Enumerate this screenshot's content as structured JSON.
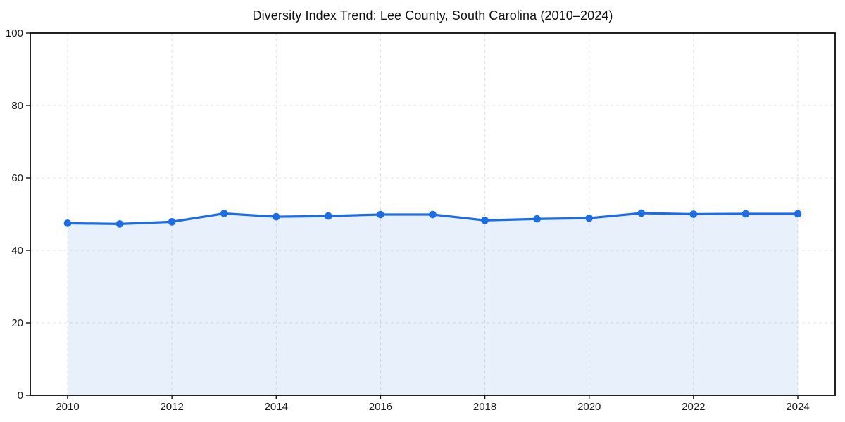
{
  "figure": {
    "background": "#ffffff"
  },
  "chart_data": {
    "type": "line",
    "title": "Diversity Index Trend: Lee County, South Carolina (2010–2024)",
    "x": [
      2010,
      2011,
      2012,
      2013,
      2014,
      2015,
      2016,
      2017,
      2018,
      2019,
      2020,
      2021,
      2022,
      2023,
      2024
    ],
    "series": [
      {
        "name": "Diversity Index",
        "values": [
          47.5,
          47.3,
          47.9,
          50.2,
          49.3,
          49.5,
          49.9,
          49.9,
          48.3,
          48.7,
          48.9,
          50.3,
          50.0,
          50.1,
          50.1
        ]
      }
    ],
    "xticks": [
      2010,
      2012,
      2014,
      2016,
      2018,
      2020,
      2022,
      2024
    ],
    "yticks": [
      0,
      20,
      40,
      60,
      80,
      100
    ],
    "ylim": [
      0,
      100
    ],
    "xlabel": "",
    "ylabel": "",
    "legend": {
      "visible": false
    },
    "grid": {
      "visible": true,
      "style": "dashed",
      "color": "#e0e0e0"
    },
    "line_color": "#1c6ce4",
    "marker_color": "#1c6ce4",
    "marker_shape": "circle",
    "area_fill_color": "#1c6ce4",
    "area_fill_opacity": 0.1,
    "spine_color": "#0a0a0a",
    "tick_color": "#111111",
    "tick_label_color": "#1a1a1a"
  }
}
